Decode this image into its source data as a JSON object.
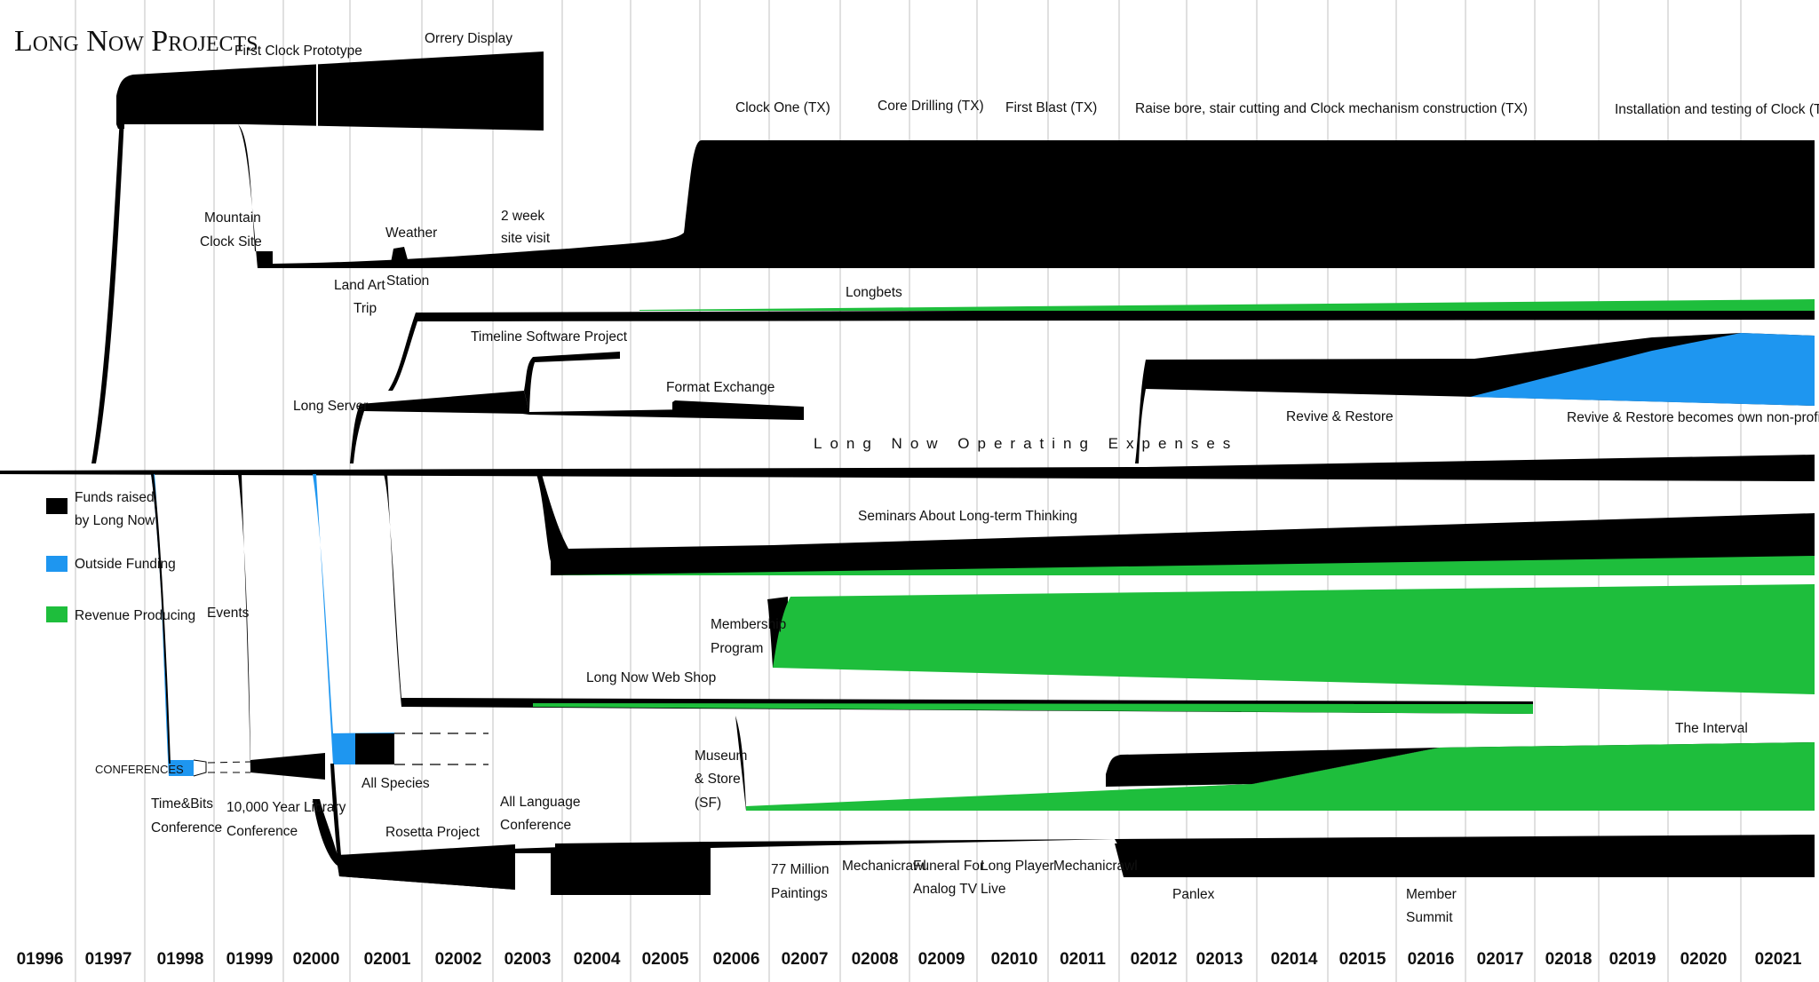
{
  "title": "Long Now Projects",
  "colors": {
    "funds": "#000000",
    "outside": "#1E96F0",
    "revenue": "#1EBE3C",
    "grid": "#d0d0d0"
  },
  "legend": [
    {
      "color": "#000000",
      "line1": "Funds raised",
      "line2": "by Long Now"
    },
    {
      "color": "#1E96F0",
      "line1": "Outside Funding",
      "line2": ""
    },
    {
      "color": "#1EBE3C",
      "line1": "Revenue Producing",
      "line2": ""
    }
  ],
  "years": [
    "01996",
    "01997",
    "01998",
    "01999",
    "02000",
    "02001",
    "02002",
    "02003",
    "02004",
    "02005",
    "02006",
    "02007",
    "02008",
    "02009",
    "02010",
    "02011",
    "02012",
    "02013",
    "02014",
    "02015",
    "02016",
    "02017",
    "02018",
    "02019",
    "02020",
    "02021"
  ],
  "upper_labels": {
    "first_clock_prototype": "First Clock Prototype",
    "orrery_display": "Orrery Display",
    "clock_one": "Clock One (TX)",
    "core_drilling": "Core Drilling (TX)",
    "first_blast": "First Blast (TX)",
    "raise_bore": "Raise bore, stair cutting and Clock mechanism construction (TX)",
    "installation": "Installation and testing of Clock (TX)",
    "mountain_1": "Mountain",
    "mountain_2": "Clock Site",
    "weather": "Weather",
    "station": "Station",
    "two_week_1": "2 week",
    "two_week_2": "site visit",
    "land_art_1": "Land Art",
    "land_art_2": "Trip",
    "longbets": "Longbets",
    "timeline_software": "Timeline Software Project",
    "format_exchange": "Format Exchange",
    "long_server": "Long Server",
    "revive_restore": "Revive & Restore",
    "revive_nonprofit": "Revive & Restore becomes own non-profit",
    "operating_expenses": "Long Now Operating Expenses"
  },
  "lower_labels": {
    "seminars": "Seminars About Long-term Thinking",
    "events": "Events",
    "membership_1": "Membership",
    "membership_2": "Program",
    "web_shop": "Long Now Web Shop",
    "conferences": "CONFERENCES",
    "time_bits_1": "Time&Bits",
    "time_bits_2": "Conference",
    "library_1": "10,000 Year Library",
    "library_2": "Conference",
    "all_species": "All Species",
    "all_language_1": "All Language",
    "all_language_2": "Conference",
    "rosetta": "Rosetta Project",
    "museum_1": "Museum",
    "museum_2": "& Store",
    "museum_3": "(SF)",
    "interval": "The Interval",
    "million_1": "77 Million",
    "million_2": "Paintings",
    "mechanicrawl_a": "Mechanicrawl",
    "funeral_1": "Funeral For",
    "funeral_2": "Analog TV",
    "long_player_1": "Long Player",
    "long_player_2": "Live",
    "mechanicrawl_b": "Mechanicrawl",
    "panlex": "Panlex",
    "member_1": "Member",
    "member_2": "Summit"
  }
}
